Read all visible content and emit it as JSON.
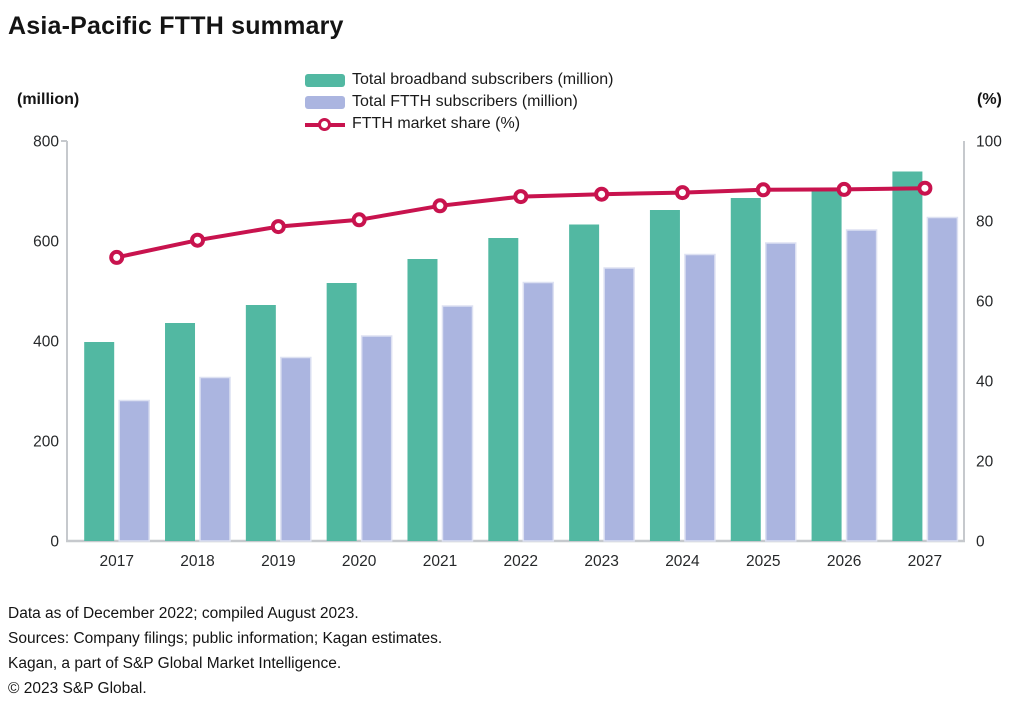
{
  "title": "Asia-Pacific FTTH summary",
  "colors": {
    "broadband_bar": "#52b8a2",
    "ftth_bar": "#abb5e0",
    "ftth_bar_border": "#dde1f2",
    "share_line": "#c8134e",
    "axis_line": "#c6c9cd",
    "tick_text": "#26282a"
  },
  "legend": [
    {
      "label": "Total broadband subscribers (million)",
      "swatch": "bar-green"
    },
    {
      "label": "Total FTTH subscribers (million)",
      "swatch": "bar-purple"
    },
    {
      "label": "FTTH market share (%)",
      "swatch": "line-marker"
    }
  ],
  "left_axis": {
    "unit": "(million)",
    "ticks": [
      0,
      200,
      400,
      600,
      800
    ],
    "min": 0,
    "max": 800
  },
  "right_axis": {
    "unit": "(%)",
    "ticks": [
      0,
      20,
      40,
      60,
      80,
      100
    ],
    "min": 0,
    "max": 100
  },
  "chart_data": {
    "type": "bar",
    "subtype": "grouped bars with overlay line",
    "title": "Asia-Pacific FTTH summary",
    "categories": [
      "2017",
      "2018",
      "2019",
      "2020",
      "2021",
      "2022",
      "2023",
      "2024",
      "2025",
      "2026",
      "2027"
    ],
    "series": [
      {
        "name": "Total broadband subscribers (million)",
        "type": "bar",
        "axis": "left",
        "values": [
          398,
          436,
          472,
          516,
          564,
          606,
          633,
          662,
          686,
          704,
          739
        ]
      },
      {
        "name": "Total FTTH subscribers (million)",
        "type": "bar",
        "axis": "left",
        "values": [
          281,
          327,
          367,
          410,
          470,
          517,
          546,
          573,
          596,
          622,
          647
        ]
      },
      {
        "name": "FTTH market share (%)",
        "type": "line",
        "axis": "right",
        "values": [
          70.9,
          75.2,
          78.6,
          80.3,
          83.8,
          86.1,
          86.7,
          87.1,
          87.8,
          87.9,
          88.2
        ]
      }
    ],
    "ylim_left": [
      0,
      800
    ],
    "ylim_right": [
      0,
      100
    ],
    "xlabel": "",
    "ylabel_left": "(million)",
    "ylabel_right": "(%)",
    "grid": false,
    "legend_position": "top-center"
  },
  "footer": {
    "lines": [
      "Data as of December 2022; compiled August 2023.",
      "Sources: Company filings; public information; Kagan estimates.",
      "Kagan, a part of S&P Global Market Intelligence.",
      "© 2023 S&P Global."
    ]
  }
}
